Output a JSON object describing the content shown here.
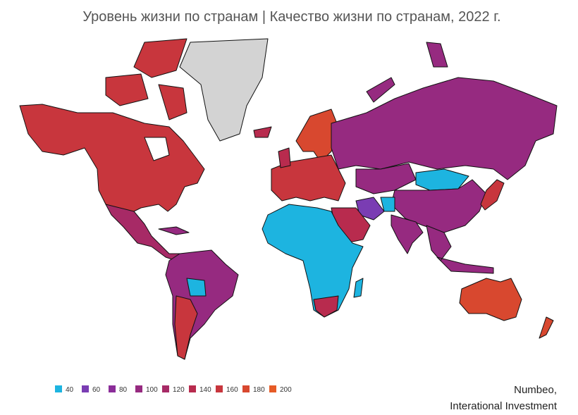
{
  "title": "Уровень жизни по странам | Качество жизни по странам, 2022 г.",
  "legend": [
    {
      "label": 40,
      "color": "#1db4e0"
    },
    {
      "label": 60,
      "color": "#7a3db3"
    },
    {
      "label": 80,
      "color": "#8b2d99"
    },
    {
      "label": 100,
      "color": "#962a80"
    },
    {
      "label": 120,
      "color": "#a72a66"
    },
    {
      "label": 140,
      "color": "#b82b4e"
    },
    {
      "label": 160,
      "color": "#c8363d"
    },
    {
      "label": 180,
      "color": "#d8482f"
    },
    {
      "label": 200,
      "color": "#e65b26"
    }
  ],
  "source": [
    "Numbeo,",
    "Interational Investment"
  ]
}
